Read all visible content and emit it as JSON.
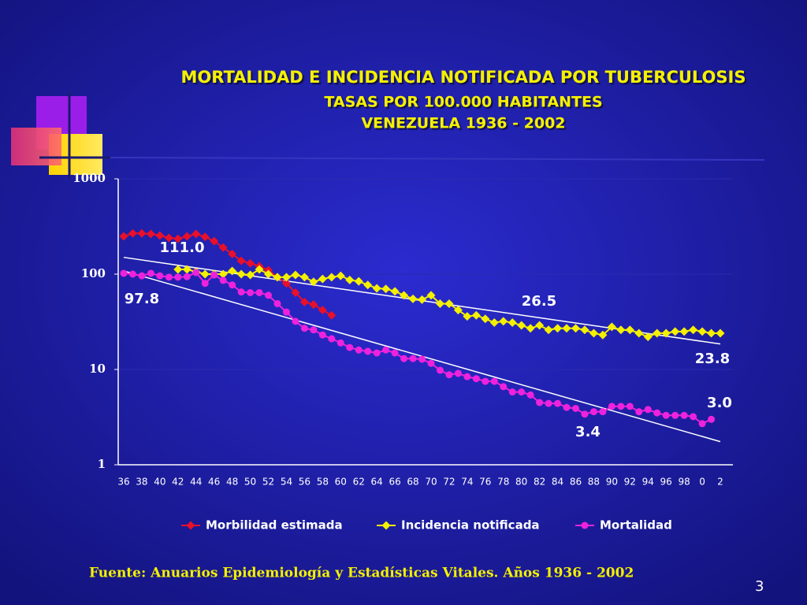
{
  "chart_data": {
    "type": "line",
    "title": "MORTALIDAD E INCIDENCIA NOTIFICADA POR TUBERCULOSIS",
    "subtitle": [
      "TASAS POR 100.000 HABITANTES",
      "VENEZUELA 1936 - 2002"
    ],
    "categories": [
      "36",
      null,
      "38",
      null,
      "40",
      null,
      "42",
      null,
      "44",
      null,
      "46",
      null,
      "48",
      null,
      "50",
      null,
      "52",
      null,
      "54",
      null,
      "56",
      null,
      "58",
      null,
      "60",
      null,
      "62",
      null,
      "64",
      null,
      "66",
      null,
      "68",
      null,
      "70",
      null,
      "72",
      null,
      "74",
      null,
      "76",
      null,
      "78",
      null,
      "80",
      null,
      "82",
      null,
      "84",
      null,
      "86",
      null,
      "88",
      null,
      "90",
      null,
      "92",
      null,
      "94",
      null,
      "96",
      null,
      "98",
      null,
      "0",
      null,
      "2"
    ],
    "series": [
      {
        "name": "Morbilidad estimada",
        "color": "#e8102a",
        "marker": "diamond",
        "values": [
          249,
          268,
          268,
          264,
          254,
          240,
          235,
          249,
          264,
          246,
          222,
          190,
          163,
          138,
          130,
          121,
          110,
          93,
          80,
          64,
          51,
          48,
          42,
          37,
          null,
          null,
          null,
          null,
          null,
          null,
          null,
          null,
          null,
          null,
          null,
          null,
          null,
          null,
          null,
          null,
          null,
          null,
          null,
          null,
          null,
          null,
          null,
          null,
          null,
          null,
          null,
          null,
          null,
          null,
          null,
          null,
          null,
          null,
          null,
          null,
          null,
          null,
          null,
          null,
          null,
          null,
          null
        ]
      },
      {
        "name": "Incidencia notificada",
        "color": "#f4f000",
        "marker": "diamond",
        "values": [
          null,
          null,
          null,
          null,
          null,
          null,
          112,
          112,
          106,
          100,
          100,
          100,
          108,
          100,
          98,
          112,
          100,
          93,
          93,
          98,
          93,
          83,
          89,
          93,
          96,
          87,
          84,
          77,
          71,
          70,
          66,
          60,
          55,
          54,
          60,
          49,
          49,
          42,
          36,
          37,
          34,
          31,
          32,
          31,
          29,
          27,
          29,
          26,
          27,
          27,
          27,
          26,
          24,
          23,
          28,
          26,
          26,
          24,
          22,
          24,
          24,
          25,
          25,
          26,
          25,
          24,
          24
        ]
      },
      {
        "name": "Mortalidad",
        "color": "#ee22dd",
        "marker": "circle",
        "values": [
          102,
          100,
          96,
          102,
          96,
          93,
          93,
          94,
          104,
          80,
          98,
          86,
          77,
          65,
          64,
          64,
          60,
          49,
          40,
          32,
          27,
          26,
          23,
          21,
          19,
          17,
          16,
          15.5,
          14.9,
          16,
          14.9,
          13,
          13,
          12.8,
          11.6,
          9.8,
          8.8,
          9.1,
          8.4,
          8.0,
          7.5,
          7.5,
          6.6,
          5.8,
          5.8,
          5.4,
          4.5,
          4.4,
          4.4,
          4.0,
          3.9,
          3.4,
          3.6,
          3.6,
          4.1,
          4.1,
          4.1,
          3.6,
          3.8,
          3.5,
          3.3,
          3.3,
          3.3,
          3.2,
          2.7,
          3.0,
          null
        ]
      }
    ],
    "trendlines": [
      {
        "color": "#ffffff",
        "start": 150,
        "end": 18.5
      },
      {
        "color": "#ffffff",
        "start": 108,
        "end": 1.75
      }
    ],
    "annotations": [
      "111.0",
      "97.8",
      "26.5",
      "23.8",
      "3.4",
      "3.0"
    ],
    "ylim": [
      1,
      1000
    ],
    "yticks": [
      1,
      10,
      100,
      1000
    ],
    "log_scale": true,
    "grid": true,
    "legend": "bottom",
    "source": "Fuente: Anuarios Epidemiología y Estadísticas Vitales. Años 1936 - 2002",
    "page_number": "3"
  }
}
